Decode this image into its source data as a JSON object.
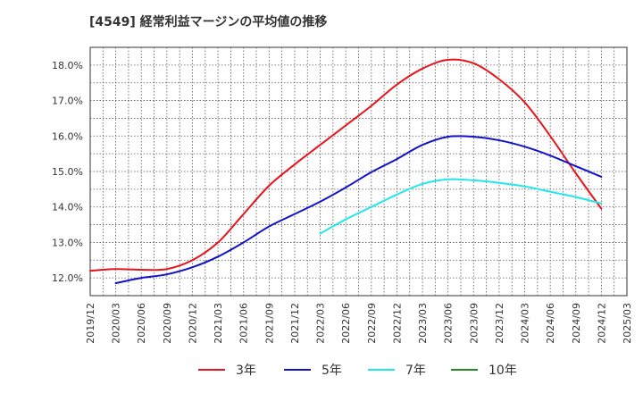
{
  "chart_data": {
    "type": "line",
    "title": "[4549]  経常利益マージンの平均値の推移",
    "y_unit": "%",
    "ylim": [
      11.5,
      18.5
    ],
    "yticks": [
      12.0,
      13.0,
      14.0,
      15.0,
      16.0,
      17.0,
      18.0
    ],
    "ytick_labels": [
      "12.0%",
      "13.0%",
      "14.0%",
      "15.0%",
      "16.0%",
      "17.0%",
      "18.0%"
    ],
    "xticks": [
      "2019/12",
      "2020/03",
      "2020/06",
      "2020/09",
      "2020/12",
      "2021/03",
      "2021/06",
      "2021/09",
      "2021/12",
      "2022/03",
      "2022/06",
      "2022/09",
      "2022/12",
      "2023/03",
      "2023/06",
      "2023/09",
      "2023/12",
      "2024/03",
      "2024/06",
      "2024/09",
      "2024/12",
      "2025/03"
    ],
    "grid": true,
    "legend_position": "bottom",
    "series": [
      {
        "name": "3年",
        "color": "#e8141c",
        "points": [
          [
            "2019/12",
            12.2
          ],
          [
            "2020/03",
            12.25
          ],
          [
            "2020/06",
            12.23
          ],
          [
            "2020/09",
            12.25
          ],
          [
            "2020/12",
            12.5
          ],
          [
            "2021/03",
            13.0
          ],
          [
            "2021/06",
            13.8
          ],
          [
            "2021/09",
            14.6
          ],
          [
            "2021/12",
            15.2
          ],
          [
            "2022/03",
            15.75
          ],
          [
            "2022/06",
            16.3
          ],
          [
            "2022/09",
            16.85
          ],
          [
            "2022/12",
            17.45
          ],
          [
            "2023/03",
            17.9
          ],
          [
            "2023/06",
            18.15
          ],
          [
            "2023/09",
            18.05
          ],
          [
            "2023/12",
            17.6
          ],
          [
            "2024/03",
            16.95
          ],
          [
            "2024/06",
            16.0
          ],
          [
            "2024/09",
            14.95
          ],
          [
            "2024/12",
            13.95
          ]
        ]
      },
      {
        "name": "5年",
        "color": "#1212c8",
        "points": [
          [
            "2020/03",
            11.85
          ],
          [
            "2020/06",
            12.0
          ],
          [
            "2020/09",
            12.1
          ],
          [
            "2020/12",
            12.3
          ],
          [
            "2021/03",
            12.6
          ],
          [
            "2021/06",
            13.0
          ],
          [
            "2021/09",
            13.45
          ],
          [
            "2021/12",
            13.8
          ],
          [
            "2022/03",
            14.15
          ],
          [
            "2022/06",
            14.55
          ],
          [
            "2022/09",
            14.98
          ],
          [
            "2022/12",
            15.35
          ],
          [
            "2023/03",
            15.75
          ],
          [
            "2023/06",
            15.98
          ],
          [
            "2023/09",
            15.98
          ],
          [
            "2023/12",
            15.88
          ],
          [
            "2024/03",
            15.7
          ],
          [
            "2024/06",
            15.45
          ],
          [
            "2024/09",
            15.15
          ],
          [
            "2024/12",
            14.85
          ]
        ]
      },
      {
        "name": "7年",
        "color": "#20e8e8",
        "points": [
          [
            "2022/03",
            13.25
          ],
          [
            "2022/06",
            13.65
          ],
          [
            "2022/09",
            14.0
          ],
          [
            "2022/12",
            14.35
          ],
          [
            "2023/03",
            14.65
          ],
          [
            "2023/06",
            14.78
          ],
          [
            "2023/09",
            14.75
          ],
          [
            "2023/12",
            14.68
          ],
          [
            "2024/03",
            14.58
          ],
          [
            "2024/06",
            14.43
          ],
          [
            "2024/09",
            14.28
          ],
          [
            "2024/12",
            14.1
          ]
        ]
      },
      {
        "name": "10年",
        "color": "#228b22",
        "points": []
      }
    ]
  }
}
